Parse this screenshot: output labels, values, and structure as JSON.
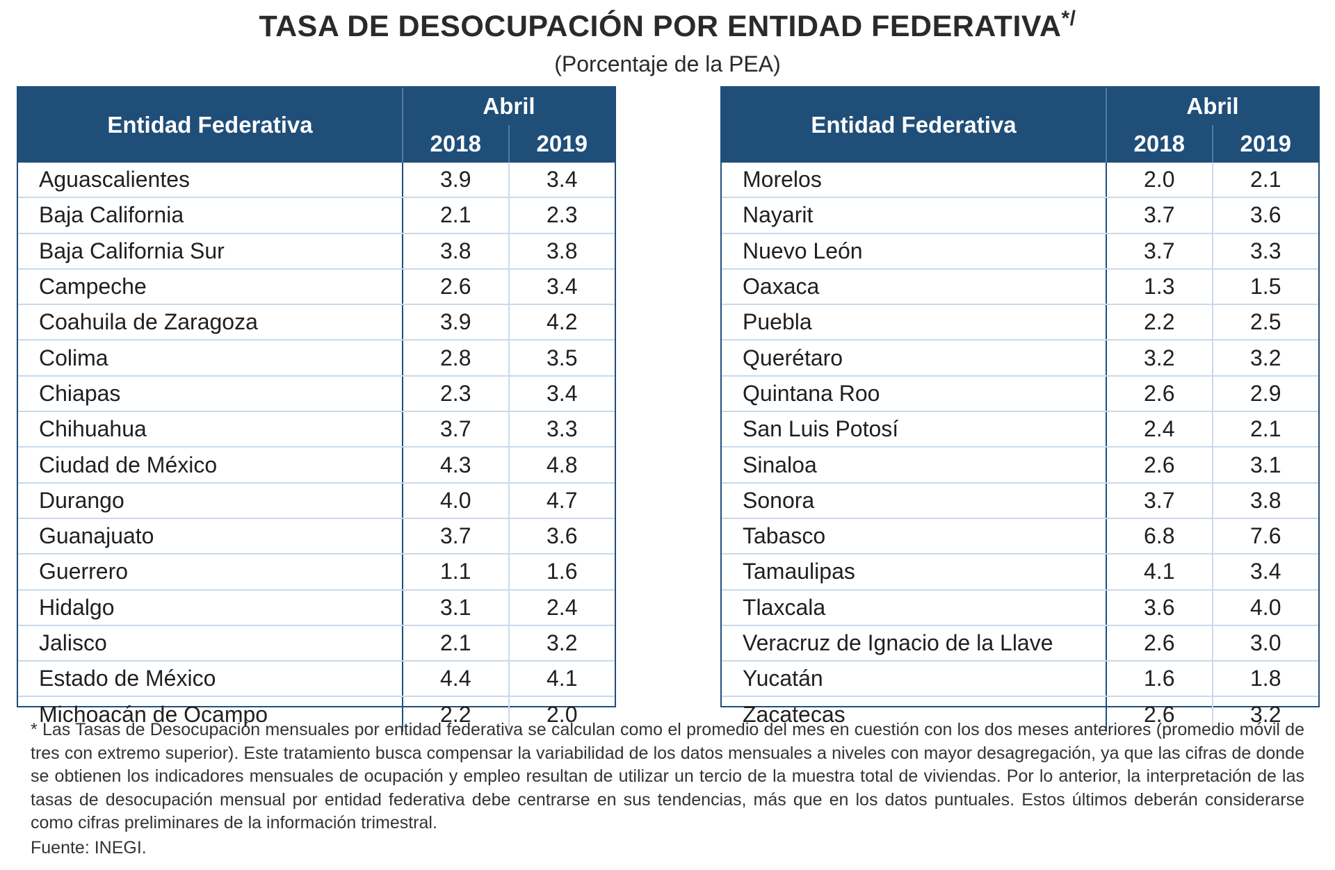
{
  "header": {
    "title": "TASA DE DESOCUPACIÓN POR ENTIDAD FEDERATIVA",
    "title_suffix": "*/",
    "subtitle": "(Porcentaje de la PEA)"
  },
  "table_headers": {
    "entity": "Entidad Federativa",
    "month": "Abril",
    "year1": "2018",
    "year2": "2019"
  },
  "left_rows": [
    {
      "entity": "Aguascalientes",
      "y2018": "3.9",
      "y2019": "3.4"
    },
    {
      "entity": "Baja California",
      "y2018": "2.1",
      "y2019": "2.3"
    },
    {
      "entity": "Baja California Sur",
      "y2018": "3.8",
      "y2019": "3.8"
    },
    {
      "entity": "Campeche",
      "y2018": "2.6",
      "y2019": "3.4"
    },
    {
      "entity": "Coahuila de Zaragoza",
      "y2018": "3.9",
      "y2019": "4.2"
    },
    {
      "entity": "Colima",
      "y2018": "2.8",
      "y2019": "3.5"
    },
    {
      "entity": "Chiapas",
      "y2018": "2.3",
      "y2019": "3.4"
    },
    {
      "entity": "Chihuahua",
      "y2018": "3.7",
      "y2019": "3.3"
    },
    {
      "entity": "Ciudad de México",
      "y2018": "4.3",
      "y2019": "4.8"
    },
    {
      "entity": "Durango",
      "y2018": "4.0",
      "y2019": "4.7"
    },
    {
      "entity": "Guanajuato",
      "y2018": "3.7",
      "y2019": "3.6"
    },
    {
      "entity": "Guerrero",
      "y2018": "1.1",
      "y2019": "1.6"
    },
    {
      "entity": "Hidalgo",
      "y2018": "3.1",
      "y2019": "2.4"
    },
    {
      "entity": "Jalisco",
      "y2018": "2.1",
      "y2019": "3.2"
    },
    {
      "entity": "Estado de México",
      "y2018": "4.4",
      "y2019": "4.1"
    },
    {
      "entity": "Michoacán de Ocampo",
      "y2018": "2.2",
      "y2019": "2.0"
    }
  ],
  "right_rows": [
    {
      "entity": "Morelos",
      "y2018": "2.0",
      "y2019": "2.1"
    },
    {
      "entity": "Nayarit",
      "y2018": "3.7",
      "y2019": "3.6"
    },
    {
      "entity": "Nuevo León",
      "y2018": "3.7",
      "y2019": "3.3"
    },
    {
      "entity": "Oaxaca",
      "y2018": "1.3",
      "y2019": "1.5"
    },
    {
      "entity": "Puebla",
      "y2018": "2.2",
      "y2019": "2.5"
    },
    {
      "entity": "Querétaro",
      "y2018": "3.2",
      "y2019": "3.2"
    },
    {
      "entity": "Quintana Roo",
      "y2018": "2.6",
      "y2019": "2.9"
    },
    {
      "entity": "San Luis Potosí",
      "y2018": "2.4",
      "y2019": "2.1"
    },
    {
      "entity": "Sinaloa",
      "y2018": "2.6",
      "y2019": "3.1"
    },
    {
      "entity": "Sonora",
      "y2018": "3.7",
      "y2019": "3.8"
    },
    {
      "entity": "Tabasco",
      "y2018": "6.8",
      "y2019": "7.6"
    },
    {
      "entity": "Tamaulipas",
      "y2018": "4.1",
      "y2019": "3.4"
    },
    {
      "entity": "Tlaxcala",
      "y2018": "3.6",
      "y2019": "4.0"
    },
    {
      "entity": "Veracruz de Ignacio de la Llave",
      "y2018": "2.6",
      "y2019": "3.0"
    },
    {
      "entity": "Yucatán",
      "y2018": "1.6",
      "y2019": "1.8"
    },
    {
      "entity": "Zacatecas",
      "y2018": "2.6",
      "y2019": "3.2"
    }
  ],
  "footnote": "* Las Tasas de Desocupación mensuales por entidad federativa se calculan como el promedio del mes en cuestión con los dos meses anteriores (promedio móvil de tres con extremo superior). Este tratamiento busca compensar la variabilidad de los datos mensuales a niveles con mayor desagregación, ya que las cifras de donde se obtienen los indicadores mensuales de ocupación y empleo resultan de utilizar un tercio de la muestra total de viviendas. Por lo anterior, la interpretación de las tasas de desocupación mensual por entidad federativa debe centrarse en sus tendencias, más que en los datos puntuales. Estos últimos deberán considerarse como cifras preliminares de la información trimestral.",
  "source": "Fuente: INEGI.",
  "colors": {
    "header_bg": "#1f4e79",
    "row_rule": "#c9d9ea"
  }
}
